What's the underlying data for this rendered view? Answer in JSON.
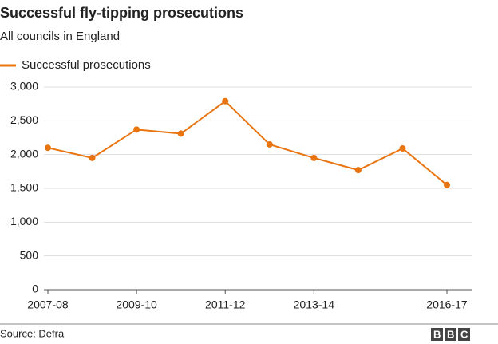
{
  "chart_data": {
    "type": "line",
    "title": "Successful fly-tipping prosecutions",
    "subtitle": "All councils in England",
    "categories": [
      "2007-08",
      null,
      "2009-10",
      null,
      "2011-12",
      null,
      "2013-14",
      null,
      null,
      "2016-17"
    ],
    "series": [
      {
        "name": "Successful prosecutions",
        "color": "#e87511",
        "values": [
          2100,
          1950,
          2370,
          2310,
          2790,
          2150,
          1950,
          1770,
          2090,
          1550
        ]
      }
    ],
    "ylim": [
      0,
      3000
    ],
    "yticks": [
      0,
      500,
      {
        "value": 1000,
        "label": "1,000"
      },
      {
        "value": 1500,
        "label": "1,500"
      },
      {
        "value": 2000,
        "label": "2,000"
      },
      {
        "value": 2500,
        "label": "2,500"
      },
      {
        "value": 3000,
        "label": "3,000"
      }
    ],
    "grid": true,
    "legend": "top-left",
    "source": "Source: Defra",
    "logo": "BBC"
  }
}
